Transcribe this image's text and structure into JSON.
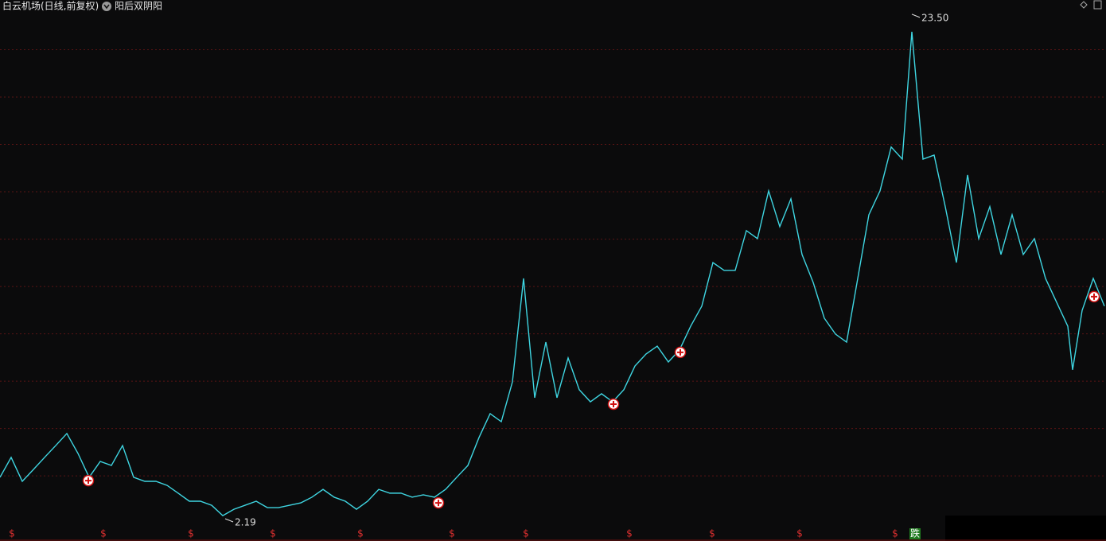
{
  "chart_data": {
    "type": "line",
    "title": "白云机场(日线,前复权)",
    "indicator": "阳后双阴阳",
    "color": "#3fd6e2",
    "xlim": [
      0,
      1390
    ],
    "ylim": [
      1.25,
      24.1
    ],
    "gridlines": [
      4,
      6,
      8,
      10,
      12,
      14,
      16,
      18,
      20,
      22
    ],
    "x": [
      0,
      14,
      28,
      42,
      56,
      70,
      84,
      98,
      112,
      126,
      140,
      154,
      168,
      182,
      196,
      210,
      224,
      238,
      252,
      266,
      280,
      294,
      308,
      322,
      336,
      350,
      364,
      378,
      392,
      406,
      420,
      434,
      448,
      462,
      476,
      490,
      504,
      518,
      532,
      546,
      560,
      574,
      588,
      602,
      616,
      630,
      644,
      658,
      672,
      686,
      700,
      714,
      728,
      742,
      756,
      770,
      784,
      798,
      812,
      826,
      840,
      854,
      868,
      882,
      896,
      910,
      924,
      938,
      952,
      966,
      980,
      994,
      1008,
      1022,
      1036,
      1050,
      1064,
      1078,
      1092,
      1106,
      1120,
      1134,
      1146,
      1160,
      1174,
      1188,
      1202,
      1216,
      1230,
      1244,
      1258,
      1272,
      1286,
      1300,
      1314,
      1328,
      1342,
      1348,
      1360,
      1374,
      1388
    ],
    "values": [
      3.94,
      4.78,
      3.77,
      4.27,
      4.78,
      5.28,
      5.79,
      4.95,
      3.94,
      4.61,
      4.44,
      5.28,
      3.94,
      3.77,
      3.77,
      3.6,
      3.27,
      2.93,
      2.93,
      2.76,
      2.32,
      2.59,
      2.76,
      2.93,
      2.66,
      2.66,
      2.76,
      2.86,
      3.1,
      3.43,
      3.1,
      2.93,
      2.59,
      2.93,
      3.43,
      3.27,
      3.27,
      3.1,
      3.2,
      3.1,
      3.43,
      3.94,
      4.44,
      5.62,
      6.63,
      6.29,
      7.97,
      12.34,
      7.3,
      9.65,
      7.3,
      8.98,
      7.64,
      7.13,
      7.47,
      7.13,
      7.64,
      8.64,
      9.15,
      9.48,
      8.81,
      9.32,
      10.32,
      11.17,
      13.01,
      12.68,
      12.68,
      14.36,
      14.02,
      16.04,
      14.53,
      15.7,
      13.35,
      12.17,
      10.66,
      9.99,
      9.65,
      12.34,
      15.03,
      16.04,
      17.89,
      17.38,
      22.76,
      17.38,
      17.55,
      15.37,
      13.01,
      16.71,
      14.02,
      15.37,
      13.35,
      15.03,
      13.35,
      14.02,
      12.34,
      11.33,
      10.32,
      8.48,
      10.99,
      12.34,
      11.17
    ],
    "annotations": [
      {
        "x": 1146,
        "value": 23.5,
        "label": "23.50"
      },
      {
        "x": 283,
        "value": 2.19,
        "label": "2.19"
      }
    ],
    "buy_signals": [
      {
        "x": 111,
        "value": 3.8
      },
      {
        "x": 551,
        "value": 2.86
      },
      {
        "x": 771,
        "value": 7.03
      },
      {
        "x": 855,
        "value": 9.22
      },
      {
        "x": 1375,
        "value": 11.57
      }
    ],
    "bottom_markers": [
      {
        "x": 15,
        "label": "$"
      },
      {
        "x": 130,
        "label": "$"
      },
      {
        "x": 240,
        "label": "$"
      },
      {
        "x": 343,
        "label": "$"
      },
      {
        "x": 453,
        "label": "$"
      },
      {
        "x": 568,
        "label": "$"
      },
      {
        "x": 661,
        "label": "$"
      },
      {
        "x": 791,
        "label": "$"
      },
      {
        "x": 895,
        "label": "$"
      },
      {
        "x": 1005,
        "label": "$"
      },
      {
        "x": 1125,
        "label": "$"
      },
      {
        "x": 1150,
        "label": "跌"
      }
    ]
  }
}
